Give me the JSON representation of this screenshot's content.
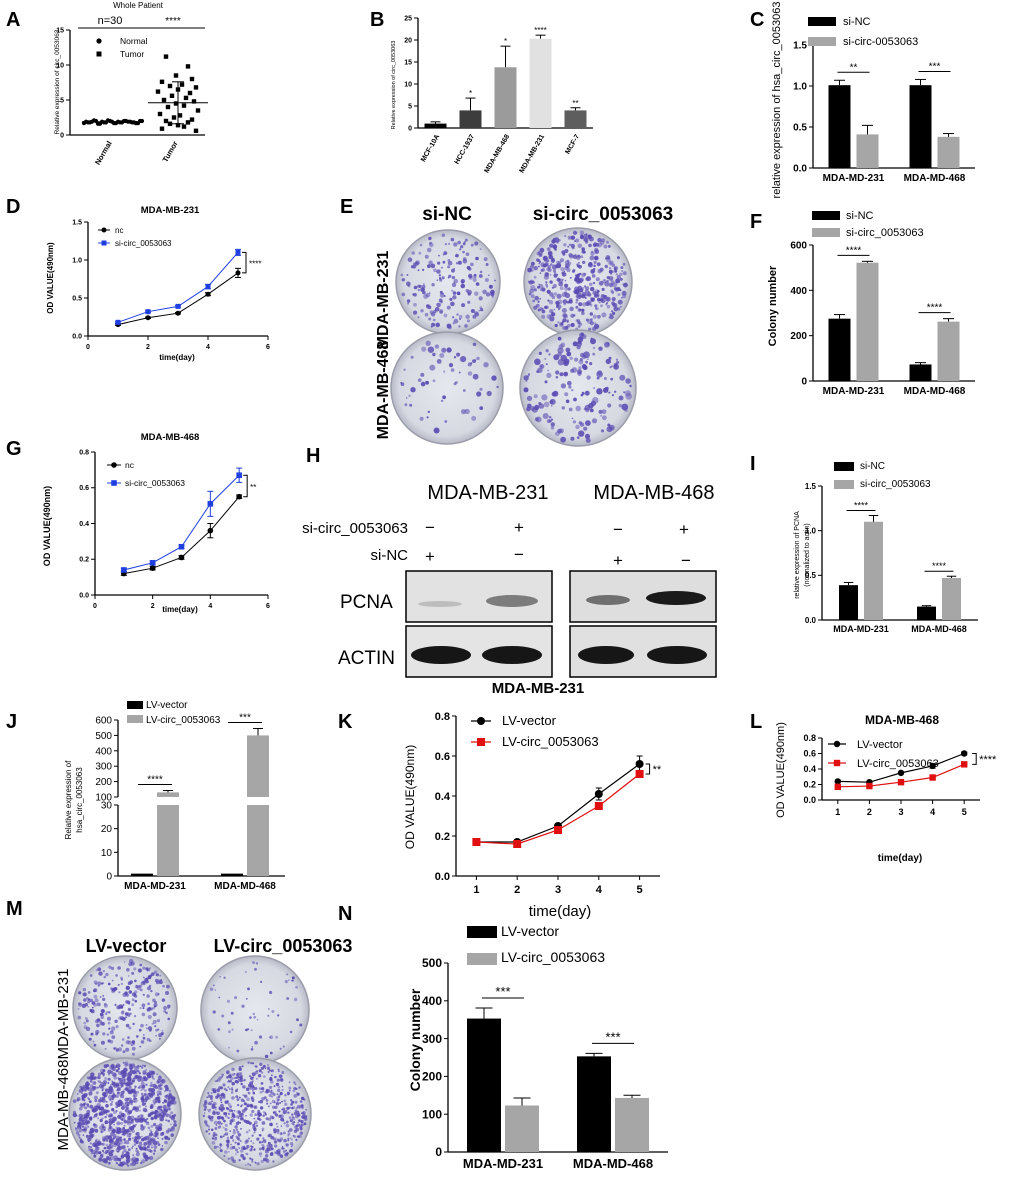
{
  "figure": {
    "colony_label_231": "MDA-MB-231",
    "colony_label_468": "MDA-MB-468"
  },
  "panel_letters": {
    "A": "A",
    "B": "B",
    "C": "C",
    "D": "D",
    "E": "E",
    "F": "F",
    "G": "G",
    "H": "H",
    "I": "I",
    "J": "J",
    "K": "K",
    "L": "L",
    "M": "M",
    "N": "N"
  },
  "colors": {
    "black": "#000000",
    "gray": "#a6a6a6",
    "blue": "#1f3fe0",
    "red": "#e01010",
    "lightgray": "#dddddd"
  },
  "panel_e": {
    "label_nc": "si-NC",
    "label_si": "si-circ_0053063"
  },
  "panel_m": {
    "label_vec": "LV-vector",
    "label_lv": "LV-circ_0053063"
  },
  "panel_h": {
    "col_231": "MDA-MB-231",
    "col_468": "MDA-MB-468",
    "row_si": "si-circ_0053063",
    "row_nc": "si-NC",
    "si_signs": [
      "−",
      "+",
      "−",
      "+"
    ],
    "nc_signs": [
      "+",
      "−",
      "+",
      "−"
    ],
    "band_pcna": "PCNA",
    "band_actin": "ACTIN",
    "caption": "MDA-MB-231"
  },
  "chart_data": [
    {
      "id": "A",
      "type": "scatter",
      "title": "Whole Patient",
      "subtitle": "n=30",
      "sig": "****",
      "ylabel": "Relative expression of circ_0053063",
      "categories": [
        "Normal",
        "Tumor"
      ],
      "ylim": [
        0,
        15
      ],
      "yticks": [
        0,
        5,
        10,
        15
      ],
      "legend": [
        "Normal",
        "Tumor"
      ],
      "normal": {
        "mean": 1.9,
        "sd": 0.2,
        "values": [
          1.7,
          1.8,
          1.9,
          2.0,
          1.6,
          1.8,
          2.1,
          1.9,
          1.7,
          1.8,
          2.0,
          1.9,
          1.8,
          1.7,
          2.0,
          1.9,
          1.8,
          2.1,
          1.6,
          1.9,
          1.8,
          2.0,
          1.7,
          1.9,
          1.8,
          2.0,
          1.9,
          1.8,
          1.7,
          2.0
        ]
      },
      "tumor": {
        "mean": 4.6,
        "sd": 3.0,
        "values": [
          11.2,
          9.8,
          8.5,
          8.0,
          7.6,
          7.2,
          7.0,
          6.8,
          6.5,
          6.2,
          6.0,
          5.6,
          5.3,
          5.0,
          4.8,
          4.5,
          4.2,
          4.0,
          3.5,
          3.0,
          2.8,
          2.5,
          2.2,
          2.0,
          1.8,
          1.6,
          1.4,
          1.2,
          0.9,
          0.6
        ]
      }
    },
    {
      "id": "B",
      "type": "bar",
      "ylabel": "Relative expression of circ_0053063",
      "categories": [
        "MCF-10A",
        "HCC-1937",
        "MDA-MB-468",
        "MDA-MB-231",
        "MCF-7"
      ],
      "values": [
        1.0,
        4.0,
        13.8,
        20.3,
        4.0
      ],
      "errors": [
        0.4,
        2.8,
        4.8,
        0.8,
        0.6
      ],
      "sig": [
        "",
        "*",
        "*",
        "****",
        "**"
      ],
      "ylim": [
        0,
        25
      ],
      "yticks": [
        0,
        5,
        10,
        15,
        20,
        25
      ]
    },
    {
      "id": "C",
      "type": "bar",
      "ylabel": "relative expression of hsa_circ_0053063",
      "categories": [
        "MDA-MD-231",
        "MDA-MD-468"
      ],
      "series": [
        {
          "name": "si-NC",
          "values": [
            1.01,
            1.01
          ],
          "errors": [
            0.06,
            0.07
          ]
        },
        {
          "name": "si-circ-0053063",
          "values": [
            0.41,
            0.38
          ],
          "errors": [
            0.11,
            0.04
          ]
        }
      ],
      "sig": [
        "**",
        "***"
      ],
      "ylim": [
        0,
        1.5
      ],
      "yticks": [
        0,
        0.5,
        1.0,
        1.5
      ]
    },
    {
      "id": "D",
      "type": "line",
      "title": "MDA-MB-231",
      "xlabel": "time(day)",
      "ylabel": "OD VALUE(490nm)",
      "x": [
        1,
        2,
        3,
        4,
        5
      ],
      "series": [
        {
          "name": "nc",
          "values": [
            0.15,
            0.24,
            0.3,
            0.55,
            0.83
          ],
          "errors": [
            0.01,
            0.01,
            0.01,
            0.02,
            0.06
          ]
        },
        {
          "name": "si-circ_0053063",
          "values": [
            0.18,
            0.32,
            0.39,
            0.65,
            1.1
          ],
          "errors": [
            0.01,
            0.01,
            0.01,
            0.03,
            0.04
          ]
        }
      ],
      "sig": "****",
      "xlim": [
        0,
        6
      ],
      "xticks": [
        0,
        2,
        4,
        6
      ],
      "ylim": [
        0,
        1.5
      ],
      "yticks": [
        0.0,
        0.5,
        1.0,
        1.5
      ]
    },
    {
      "id": "F",
      "type": "bar",
      "ylabel": "Colony number",
      "categories": [
        "MDA-MD-231",
        "MDA-MD-468"
      ],
      "series": [
        {
          "name": "si-NC",
          "values": [
            275,
            73
          ],
          "errors": [
            18,
            8
          ]
        },
        {
          "name": "si-circ_0053063",
          "values": [
            522,
            262
          ],
          "errors": [
            6,
            13
          ]
        }
      ],
      "sig": [
        "****",
        "****"
      ],
      "ylim": [
        0,
        600
      ],
      "yticks": [
        0,
        200,
        400,
        600
      ]
    },
    {
      "id": "G",
      "type": "line",
      "title": "MDA-MB-468",
      "xlabel": "time(day)",
      "ylabel": "OD VALUE(490nm)",
      "x": [
        1,
        2,
        3,
        4,
        5
      ],
      "series": [
        {
          "name": "nc",
          "values": [
            0.12,
            0.15,
            0.21,
            0.36,
            0.55
          ],
          "errors": [
            0.01,
            0.01,
            0.01,
            0.04,
            0.01
          ]
        },
        {
          "name": "si-circ_0053063",
          "values": [
            0.14,
            0.18,
            0.27,
            0.51,
            0.67
          ],
          "errors": [
            0.01,
            0.01,
            0.01,
            0.07,
            0.04
          ]
        }
      ],
      "sig": "**",
      "xlim": [
        0,
        6
      ],
      "xticks": [
        0,
        2,
        4,
        6
      ],
      "ylim": [
        0,
        0.8
      ],
      "yticks": [
        0.0,
        0.2,
        0.4,
        0.6,
        0.8
      ]
    },
    {
      "id": "I",
      "type": "bar",
      "ylabel": "relative expression of PCNA",
      "ylabel2": "(normalized to actin)",
      "categories": [
        "MDA-MD-231",
        "MDA-MD-468"
      ],
      "series": [
        {
          "name": "si-NC",
          "values": [
            0.39,
            0.15
          ],
          "errors": [
            0.03,
            0.01
          ]
        },
        {
          "name": "si-circ_0053063",
          "values": [
            1.1,
            0.47
          ],
          "errors": [
            0.07,
            0.02
          ]
        }
      ],
      "sig": [
        "****",
        "****"
      ],
      "ylim": [
        0,
        1.5
      ],
      "yticks": [
        0.0,
        0.5,
        1.0,
        1.5
      ]
    },
    {
      "id": "J",
      "type": "bar",
      "ylabel": "Relative expression of",
      "ylabel2": "hsa_circ_0053063",
      "categories": [
        "MDA-MD-231",
        "MDA-MD-468"
      ],
      "series": [
        {
          "name": "LV-vector",
          "values": [
            1,
            1
          ],
          "errors": [
            0,
            0
          ]
        },
        {
          "name": "LV-circ_0053063",
          "values": [
            130,
            500
          ],
          "errors": [
            12,
            45
          ]
        }
      ],
      "sig": [
        "****",
        "***"
      ],
      "yticks_low": [
        0,
        10,
        20,
        30
      ],
      "yticks_high": [
        100,
        200,
        300,
        400,
        500,
        600
      ]
    },
    {
      "id": "K",
      "type": "line",
      "xlabel": "time(day)",
      "ylabel": "OD VALUE(490nm)",
      "x": [
        1,
        2,
        3,
        4,
        5
      ],
      "series": [
        {
          "name": "LV-vector",
          "values": [
            0.17,
            0.17,
            0.25,
            0.41,
            0.56
          ],
          "errors": [
            0.01,
            0.01,
            0.01,
            0.03,
            0.04
          ]
        },
        {
          "name": "LV-circ_0053063",
          "values": [
            0.17,
            0.16,
            0.23,
            0.35,
            0.51
          ],
          "errors": [
            0.01,
            0.01,
            0.01,
            0.01,
            0.01
          ]
        }
      ],
      "sig": "**",
      "xlim": [
        0.5,
        5.5
      ],
      "xticks": [
        1,
        2,
        3,
        4,
        5
      ],
      "ylim": [
        0,
        0.8
      ],
      "yticks": [
        0.0,
        0.2,
        0.4,
        0.6,
        0.8
      ]
    },
    {
      "id": "L",
      "type": "line",
      "title": "MDA-MB-468",
      "xlabel": "time(day)",
      "ylabel": "OD VALUE(490nm)",
      "x": [
        1,
        2,
        3,
        4,
        5
      ],
      "series": [
        {
          "name": "LV-vector",
          "values": [
            0.24,
            0.23,
            0.35,
            0.44,
            0.6
          ],
          "errors": [
            0.01,
            0.01,
            0.01,
            0.03,
            0.02
          ]
        },
        {
          "name": "LV-circ_0053063",
          "values": [
            0.17,
            0.18,
            0.23,
            0.29,
            0.46
          ],
          "errors": [
            0.01,
            0.01,
            0.01,
            0.01,
            0.02
          ]
        }
      ],
      "sig": "****",
      "xlim": [
        0.5,
        5.5
      ],
      "xticks": [
        1,
        2,
        3,
        4,
        5
      ],
      "ylim": [
        0,
        0.8
      ],
      "yticks": [
        0.0,
        0.2,
        0.4,
        0.6,
        0.8
      ]
    },
    {
      "id": "N",
      "type": "bar",
      "ylabel": "Colony number",
      "categories": [
        "MDA-MD-231",
        "MDA-MD-468"
      ],
      "series": [
        {
          "name": "LV-vector",
          "values": [
            353,
            253
          ],
          "errors": [
            28,
            8
          ]
        },
        {
          "name": "LV-circ_0053063",
          "values": [
            123,
            143
          ],
          "errors": [
            20,
            7
          ]
        }
      ],
      "sig": [
        "***",
        "***"
      ],
      "ylim": [
        0,
        500
      ],
      "yticks": [
        0,
        100,
        200,
        300,
        400,
        500
      ]
    }
  ]
}
